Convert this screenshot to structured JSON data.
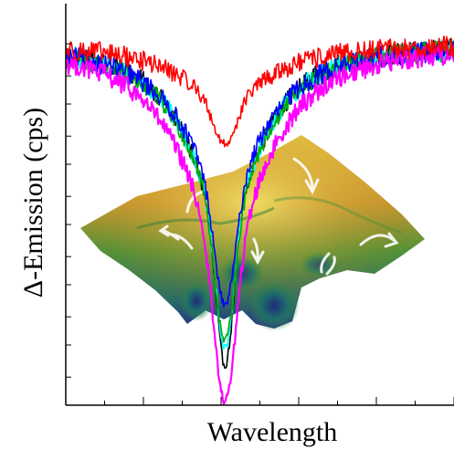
{
  "chart_data": {
    "type": "line",
    "title": "",
    "xlabel": "Wavelength",
    "ylabel": "Δ-Emission (cps)",
    "xlim": [
      0,
      100
    ],
    "ylim": [
      0,
      100
    ],
    "x_tick_labels_shown": false,
    "y_tick_labels_shown": false,
    "grid": false,
    "legend": "none",
    "x_ticks": [
      0,
      10,
      20,
      30,
      40,
      50,
      60,
      70,
      80,
      90,
      100
    ],
    "y_ticks": [
      7,
      15,
      22,
      30,
      37,
      45,
      52,
      60,
      67,
      75,
      82,
      90
    ],
    "dip_center_x": 41,
    "series": [
      {
        "color": "#000000",
        "baseline": 90,
        "minimum": 10
      },
      {
        "color": "#00ffff",
        "baseline": 90,
        "minimum": 14
      },
      {
        "color": "#00aa00",
        "baseline": 90,
        "minimum": 16
      },
      {
        "color": "#0000ff",
        "baseline": 90,
        "minimum": 25
      },
      {
        "color": "#ff00ff",
        "baseline": 90,
        "minimum": 1
      },
      {
        "color": "#ff0000",
        "baseline": 90,
        "minimum": 65
      }
    ]
  },
  "inset": {
    "depicts": "3d-energy-landscape-with-arrows"
  }
}
